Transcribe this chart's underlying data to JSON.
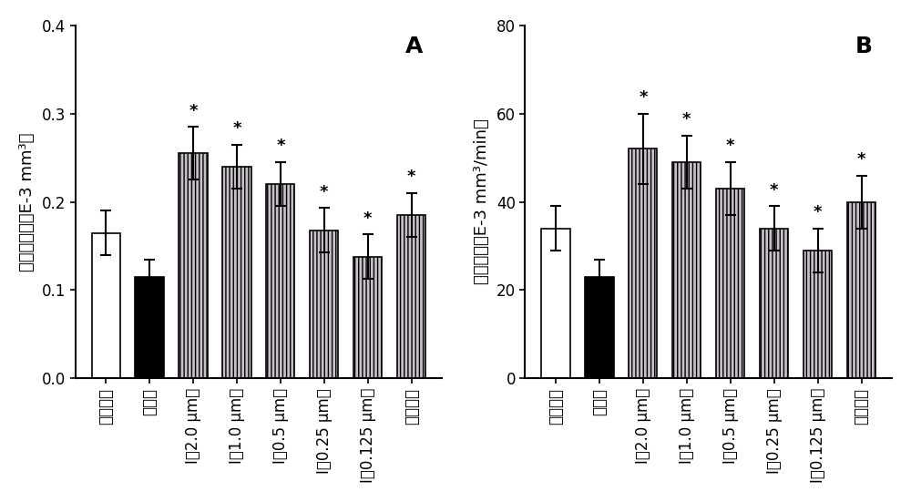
{
  "chart_A": {
    "title": "A",
    "ylabel": "每搞输出量（E-3 mm³）",
    "ylim": [
      0,
      0.4
    ],
    "yticks": [
      0.0,
      0.1,
      0.2,
      0.3,
      0.4
    ],
    "values": [
      0.165,
      0.115,
      0.255,
      0.24,
      0.22,
      0.168,
      0.138,
      0.185
    ],
    "errors": [
      0.025,
      0.02,
      0.03,
      0.025,
      0.025,
      0.025,
      0.025,
      0.025
    ],
    "colors": [
      "white",
      "black",
      "#c8c0c8",
      "#c8c0c8",
      "#c8c0c8",
      "#c8c0c8",
      "#c8c0c8",
      "#c8c0c8"
    ],
    "hatches": [
      "",
      "",
      "||||",
      "||||",
      "||||",
      "||||",
      "||||",
      "||||"
    ],
    "star": [
      false,
      false,
      true,
      true,
      true,
      true,
      true,
      true
    ]
  },
  "chart_B": {
    "title": "B",
    "ylabel": "心输出量（E-3 mm³/min）",
    "ylim": [
      0,
      80
    ],
    "yticks": [
      0,
      20,
      40,
      60,
      80
    ],
    "values": [
      34,
      23,
      52,
      49,
      43,
      34,
      29,
      40
    ],
    "errors": [
      5,
      4,
      8,
      6,
      6,
      5,
      5,
      6
    ],
    "colors": [
      "white",
      "black",
      "#c8c0c8",
      "#c8c0c8",
      "#c8c0c8",
      "#c8c0c8",
      "#c8c0c8",
      "#c8c0c8"
    ],
    "hatches": [
      "",
      "",
      "||||",
      "||||",
      "||||",
      "||||",
      "||||",
      "||||"
    ],
    "star": [
      false,
      false,
      true,
      true,
      true,
      true,
      true,
      true
    ]
  },
  "categories": [
    "正常对照",
    "模型组",
    "I（2.0 μm）",
    "I（1.0 μm）",
    "I（0.5 μm）",
    "I（0.25 μm）",
    "I（0.125 μm）",
    "去羟肌苷"
  ],
  "background_color": "#ffffff",
  "figure_bg": "#ffffff",
  "label_fontsize": 13,
  "tick_fontsize": 12,
  "bar_width": 0.65
}
